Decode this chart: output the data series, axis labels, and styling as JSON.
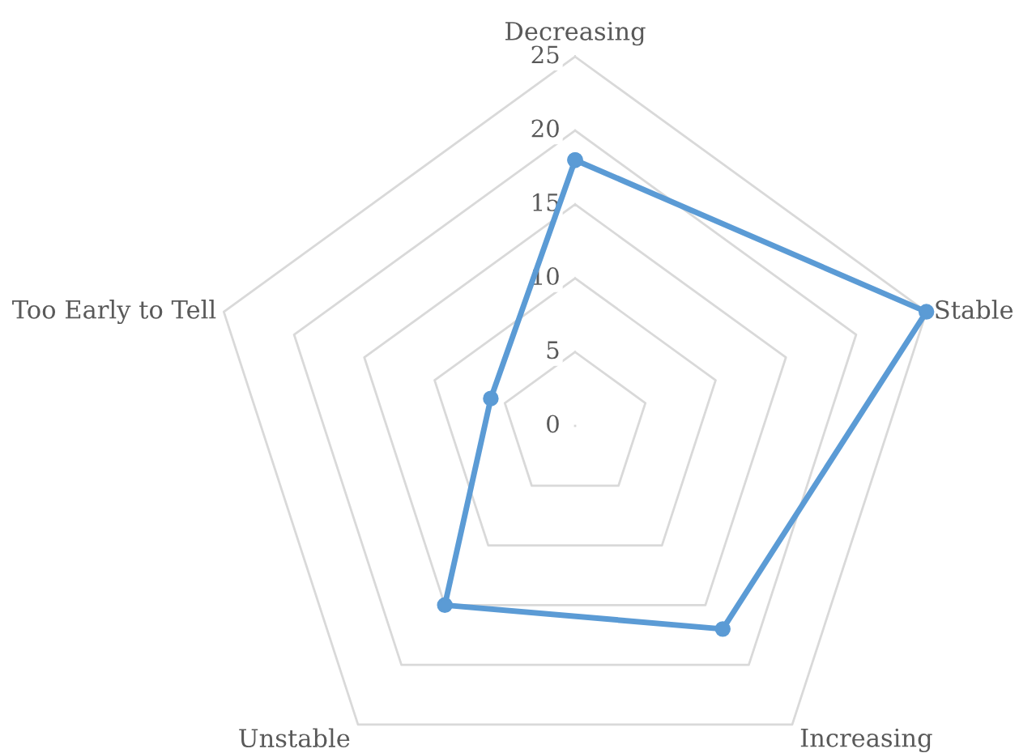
{
  "chart_data": {
    "type": "radar",
    "categories": [
      "Decreasing",
      "Stable",
      "Increasing",
      "Unstable",
      "Too Early to Tell"
    ],
    "series": [
      {
        "color": "#5b9bd5",
        "values": [
          18,
          25,
          17,
          15,
          6
        ]
      }
    ],
    "ylim": [
      0,
      25
    ],
    "yticks": [
      0,
      5,
      10,
      15,
      20,
      25
    ],
    "marker": "circle",
    "grid": true,
    "legend": false
  }
}
